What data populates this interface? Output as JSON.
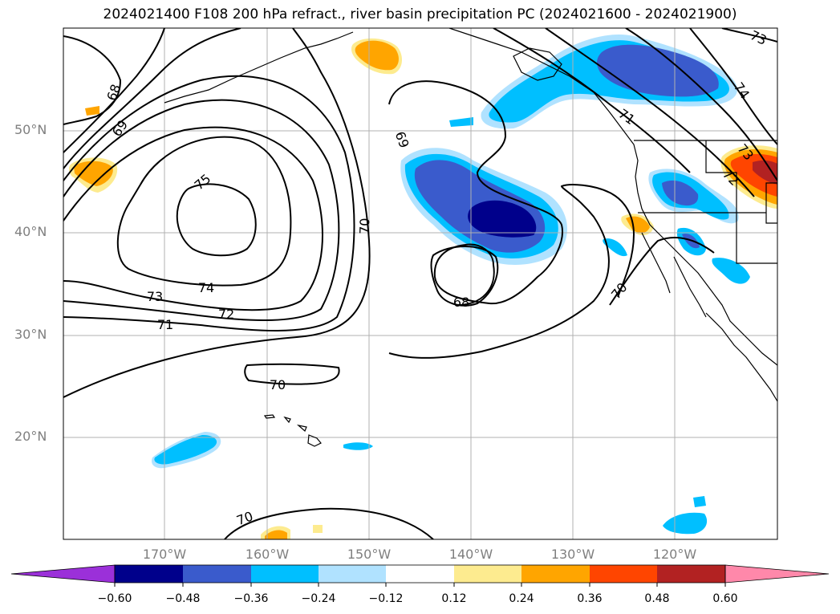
{
  "title": "2024021400 F108 200 hPa refract., river basin precipitation PC (2024021600 - 2024021900)",
  "lat_labels": [
    "50°N",
    "40°N",
    "30°N",
    "20°N"
  ],
  "lon_labels": [
    "170°W",
    "160°W",
    "150°W",
    "140°W",
    "130°W",
    "120°W"
  ],
  "contour_labels": [
    "68",
    "69",
    "70",
    "75",
    "74",
    "73",
    "72",
    "71",
    "69",
    "70",
    "68",
    "70",
    "71",
    "72",
    "73",
    "74",
    "70"
  ],
  "colorbar": {
    "ticks": [
      "−0.60",
      "−0.48",
      "−0.36",
      "−0.24",
      "−0.12",
      "0.12",
      "0.24",
      "0.36",
      "0.48",
      "0.60"
    ],
    "colors": [
      "#9b30d9",
      "#00008b",
      "#3a5bcc",
      "#00bfff",
      "#b0e2ff",
      "#ffffff",
      "#fdeb8f",
      "#ffa500",
      "#ff4500",
      "#b22222",
      "#ff88aa"
    ]
  },
  "colors": {
    "strong_negative": "#00008b",
    "negative": "#3a5bcc",
    "moderate_negative": "#00bfff",
    "weak_negative": "#b0e2ff",
    "weak_positive": "#fdeb8f",
    "moderate_positive": "#ffa500",
    "positive": "#ff4500",
    "strong_positive": "#b22222"
  }
}
